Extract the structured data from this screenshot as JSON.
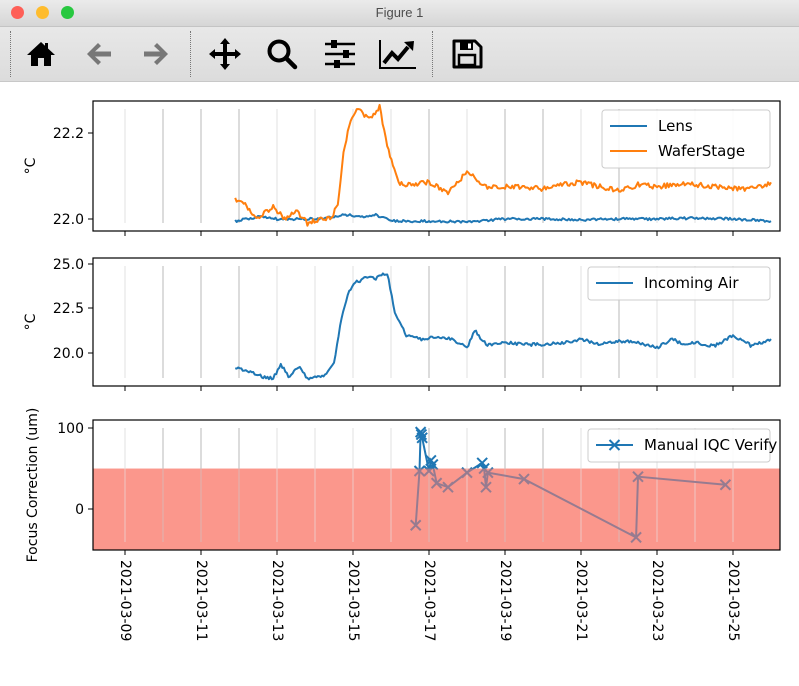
{
  "window": {
    "title": "Figure 1"
  },
  "toolbar": {
    "buttons": [
      {
        "name": "home",
        "icon": "home-icon",
        "label": "Home"
      },
      {
        "name": "back",
        "icon": "arrow-left-icon",
        "label": "Back"
      },
      {
        "name": "forward",
        "icon": "arrow-right-icon",
        "label": "Forward"
      },
      {
        "name": "pan",
        "icon": "move-icon",
        "label": "Pan"
      },
      {
        "name": "zoom",
        "icon": "magnifier-icon",
        "label": "Zoom"
      },
      {
        "name": "subplots",
        "icon": "sliders-icon",
        "label": "Configure subplots"
      },
      {
        "name": "customize",
        "icon": "line-chart-icon",
        "label": "Edit axis"
      },
      {
        "name": "save",
        "icon": "floppy-disk-icon",
        "label": "Save"
      }
    ]
  },
  "colors": {
    "lens": "#1f77b4",
    "waferstage": "#ff7f0e",
    "incoming_air": "#1f77b4",
    "manual_iqc": "#1f77b4",
    "shade": "#fa8072",
    "grid_vline": "#d9d9d9"
  },
  "chart_data": [
    {
      "type": "line",
      "title": "",
      "xlabel": "",
      "ylabel": "°C",
      "ylim": [
        21.972,
        22.274
      ],
      "yticks": [
        "22.0",
        "22.2"
      ],
      "xlim": [
        "2021-03-08",
        "2021-03-26"
      ],
      "legend_position": "upper right",
      "series": [
        {
          "name": "Lens",
          "color": "#1f77b4",
          "x": [
            2.9,
            3.5,
            4.0,
            4.6,
            5.0,
            5.5,
            5.8,
            6.2,
            6.6,
            7.0,
            8.0,
            9.0,
            10.0,
            11.0,
            12.0,
            13.0,
            14.0,
            15.0,
            16.0,
            17.0
          ],
          "y": [
            21.995,
            22.005,
            22.0,
            22.0,
            22.0,
            22.005,
            22.01,
            22.005,
            22.01,
            21.995,
            21.995,
            21.993,
            22.0,
            22.0,
            21.998,
            22.0,
            22.0,
            22.002,
            22.0,
            21.995
          ]
        },
        {
          "name": "WaferStage",
          "color": "#ff7f0e",
          "x": [
            2.9,
            3.2,
            3.5,
            3.9,
            4.2,
            4.5,
            4.8,
            5.1,
            5.4,
            5.6,
            5.75,
            5.9,
            6.1,
            6.3,
            6.5,
            6.7,
            6.9,
            7.2,
            7.5,
            8.0,
            8.5,
            9.0,
            9.5,
            10.0,
            10.5,
            11.0,
            11.5,
            12.0,
            12.5,
            13.0,
            13.5,
            14.0,
            14.5,
            15.0,
            15.5,
            16.0,
            16.5,
            17.0
          ],
          "y": [
            22.045,
            22.03,
            22.0,
            22.03,
            22.0,
            22.02,
            21.99,
            22.0,
            22.0,
            22.03,
            22.15,
            22.22,
            22.26,
            22.24,
            22.24,
            22.26,
            22.17,
            22.08,
            22.08,
            22.085,
            22.06,
            22.11,
            22.075,
            22.075,
            22.075,
            22.07,
            22.08,
            22.085,
            22.075,
            22.065,
            22.08,
            22.075,
            22.08,
            22.08,
            22.075,
            22.07,
            22.07,
            22.085
          ]
        }
      ]
    },
    {
      "type": "line",
      "title": "",
      "xlabel": "",
      "ylabel": "°C",
      "ylim": [
        18.17,
        25.34
      ],
      "yticks": [
        "20.0",
        "22.5",
        "25.0"
      ],
      "xlim": [
        "2021-03-08",
        "2021-03-26"
      ],
      "legend_position": "upper right",
      "series": [
        {
          "name": "Incoming Air",
          "color": "#1f77b4",
          "x": [
            2.9,
            3.1,
            3.3,
            3.6,
            3.9,
            4.1,
            4.3,
            4.6,
            4.8,
            5.0,
            5.3,
            5.5,
            5.7,
            5.9,
            6.1,
            6.3,
            6.6,
            6.9,
            7.1,
            7.4,
            7.8,
            8.2,
            8.6,
            9.0,
            9.2,
            9.5,
            10.0,
            10.5,
            11.0,
            11.5,
            12.0,
            12.5,
            13.0,
            13.5,
            14.0,
            14.4,
            14.7,
            15.0,
            15.5,
            16.0,
            16.5,
            17.0
          ],
          "y": [
            19.2,
            19.1,
            19.0,
            18.7,
            18.6,
            19.4,
            18.7,
            19.3,
            18.6,
            18.7,
            18.8,
            19.5,
            22.0,
            23.5,
            24.0,
            24.2,
            24.2,
            24.5,
            22.3,
            21.0,
            20.8,
            20.9,
            20.8,
            20.3,
            21.3,
            20.5,
            20.6,
            20.5,
            20.5,
            20.6,
            20.8,
            20.5,
            20.7,
            20.6,
            20.3,
            20.8,
            20.5,
            20.6,
            20.4,
            21.0,
            20.4,
            20.8
          ]
        }
      ]
    },
    {
      "type": "line",
      "title": "",
      "xlabel": "",
      "ylabel": "Focus Correction (um)",
      "ylim": [
        -50.6,
        110
      ],
      "yticks": [
        "0",
        "100"
      ],
      "xlim": [
        "2021-03-08",
        "2021-03-26"
      ],
      "xticks": [
        "2021-03-09",
        "2021-03-11",
        "2021-03-13",
        "2021-03-15",
        "2021-03-17",
        "2021-03-19",
        "2021-03-21",
        "2021-03-23",
        "2021-03-25"
      ],
      "xtick_rotation": -90,
      "legend_position": "upper right",
      "shaded_band": {
        "ymin": -50,
        "ymax": 50,
        "color": "#fa8072",
        "alpha": 0.6
      },
      "series": [
        {
          "name": "Manual IQC Verify",
          "color": "#1f77b4",
          "marker": "x",
          "x": [
            7.65,
            7.75,
            7.78,
            7.8,
            7.82,
            8.0,
            8.05,
            8.1,
            8.2,
            8.5,
            9.0,
            9.4,
            9.45,
            9.5,
            9.55,
            10.5,
            13.45,
            13.5,
            15.8
          ],
          "y": [
            -20,
            47,
            95,
            92,
            88,
            47,
            60,
            55,
            32,
            27,
            45,
            57,
            50,
            27,
            45,
            37,
            -35,
            40,
            30
          ]
        }
      ],
      "note": "Points below 50 um drawn blue-over-salmon (appear purple-grey)."
    }
  ]
}
